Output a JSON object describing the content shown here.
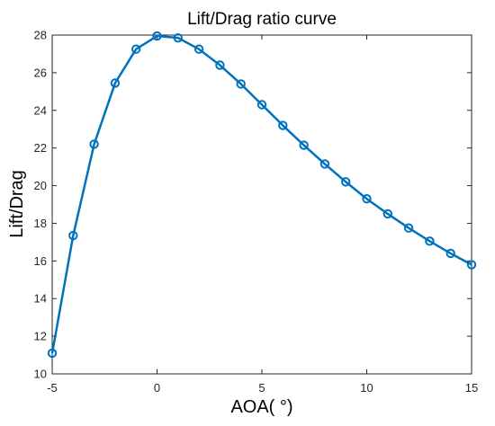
{
  "chart_data": {
    "type": "line",
    "title": "Lift/Drag ratio curve",
    "xlabel": "AOA( °)",
    "ylabel": "Lift/Drag",
    "xlim": [
      -5,
      15
    ],
    "ylim": [
      10,
      28
    ],
    "xticks": [
      "-5",
      "0",
      "5",
      "10",
      "15"
    ],
    "yticks": [
      "10",
      "12",
      "14",
      "16",
      "18",
      "20",
      "22",
      "24",
      "26",
      "28"
    ],
    "grid": false,
    "series": [
      {
        "color": "#0072BD",
        "marker": "circle",
        "x": [
          -5,
          -4,
          -3,
          -2,
          -1,
          0,
          1,
          2,
          3,
          4,
          5,
          6,
          7,
          8,
          9,
          10,
          11,
          12,
          13,
          14,
          15
        ],
        "y": [
          11.1,
          17.35,
          22.2,
          25.45,
          27.25,
          27.95,
          27.85,
          27.25,
          26.4,
          25.4,
          24.3,
          23.2,
          22.15,
          21.15,
          20.2,
          19.3,
          18.5,
          17.75,
          17.05,
          16.4,
          15.8
        ]
      }
    ]
  }
}
